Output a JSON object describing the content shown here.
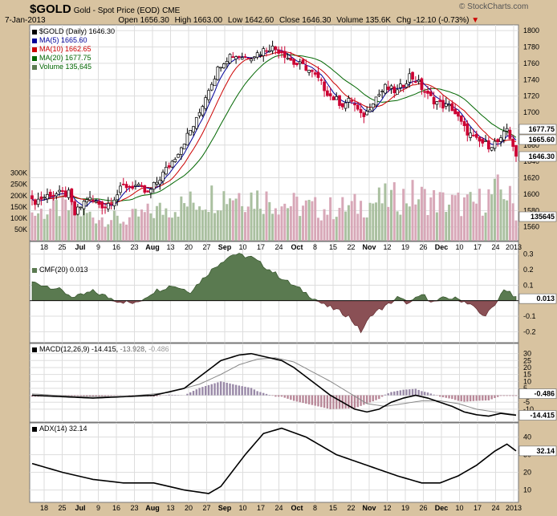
{
  "header": {
    "symbol": "$GOLD",
    "name": "Gold - Spot Price (EOD)",
    "exchange": "CME",
    "date": "7-Jan-2013",
    "open_label": "Open",
    "open": "1656.30",
    "high_label": "High",
    "high": "1663.00",
    "low_label": "Low",
    "low": "1642.60",
    "close_label": "Close",
    "close": "1646.30",
    "volume_label": "Volume",
    "volume": "135.6K",
    "chg_label": "Chg",
    "chg": "-12.10 (-0.73%)",
    "watermark": "© StockCharts.com"
  },
  "colors": {
    "up": "#000000",
    "down": "#cc0033",
    "ma5": "#000099",
    "ma10": "#cc0000",
    "ma20": "#006600",
    "cmf_pos": "#5a7a50",
    "cmf_neg": "#8a5055",
    "vol_up": "#aac0a0",
    "vol_down": "#d8a8b8",
    "grid": "#dddddd"
  },
  "legend": {
    "price": "$GOLD (Daily) 1646.30",
    "ma5": "MA(5) 1665.60",
    "ma10": "MA(10) 1662.65",
    "ma20": "MA(20) 1677.75",
    "volume": "Volume 135,645"
  },
  "panels": {
    "cmf": "CMF(20) 0.013",
    "macd_name": "MACD(12,26,9)",
    "macd_v1": "-14.415,",
    "macd_v2": "-13.928,",
    "macd_v3": "-0.486",
    "adx": "ADX(14) 32.14"
  },
  "chart_data": {
    "type": "candlestick",
    "x_axis": [
      "18",
      "25",
      "Jul",
      "9",
      "16",
      "23",
      "Aug",
      "13",
      "20",
      "27",
      "Sep",
      "10",
      "17",
      "24",
      "Oct",
      "8",
      "15",
      "22",
      "Nov",
      "12",
      "19",
      "26",
      "Dec",
      "10",
      "17",
      "24",
      "2013"
    ],
    "price": {
      "ylim": [
        1545,
        1805
      ],
      "ticks": [
        1560,
        1580,
        1600,
        1620,
        1640,
        1660,
        1680,
        1700,
        1720,
        1740,
        1760,
        1780,
        1800
      ],
      "close_keypoints": [
        [
          0,
          1590
        ],
        [
          6,
          1600
        ],
        [
          12,
          1600
        ],
        [
          14,
          1575
        ],
        [
          18,
          1595
        ],
        [
          24,
          1585
        ],
        [
          28,
          1600
        ],
        [
          30,
          1610
        ],
        [
          34,
          1610
        ],
        [
          38,
          1600
        ],
        [
          42,
          1620
        ],
        [
          46,
          1640
        ],
        [
          50,
          1665
        ],
        [
          54,
          1690
        ],
        [
          58,
          1730
        ],
        [
          62,
          1760
        ],
        [
          65,
          1770
        ],
        [
          70,
          1768
        ],
        [
          74,
          1772
        ],
        [
          78,
          1780
        ],
        [
          82,
          1775
        ],
        [
          86,
          1760
        ],
        [
          90,
          1755
        ],
        [
          94,
          1740
        ],
        [
          98,
          1720
        ],
        [
          102,
          1710
        ],
        [
          105,
          1715
        ],
        [
          108,
          1695
        ],
        [
          110,
          1700
        ],
        [
          112,
          1715
        ],
        [
          116,
          1730
        ],
        [
          120,
          1725
        ],
        [
          124,
          1745
        ],
        [
          126,
          1740
        ],
        [
          130,
          1720
        ],
        [
          134,
          1710
        ],
        [
          138,
          1705
        ],
        [
          142,
          1680
        ],
        [
          146,
          1665
        ],
        [
          150,
          1660
        ],
        [
          154,
          1665
        ],
        [
          156,
          1680
        ],
        [
          158,
          1660
        ],
        [
          159,
          1646
        ]
      ],
      "last_close": 1646.3,
      "ma5_last": 1665.6,
      "ma10_last": 1662.65,
      "ma20_last": 1677.75
    },
    "volume": {
      "ticks": [
        "50K",
        "100K",
        "150K",
        "200K",
        "250K",
        "300K"
      ],
      "last": 135645,
      "keypoints": [
        [
          0,
          120
        ],
        [
          10,
          150
        ],
        [
          20,
          110
        ],
        [
          30,
          90
        ],
        [
          40,
          130
        ],
        [
          50,
          160
        ],
        [
          60,
          200
        ],
        [
          68,
          210
        ],
        [
          75,
          190
        ],
        [
          85,
          160
        ],
        [
          95,
          140
        ],
        [
          105,
          150
        ],
        [
          115,
          180
        ],
        [
          125,
          200
        ],
        [
          135,
          170
        ],
        [
          145,
          160
        ],
        [
          155,
          230
        ],
        [
          159,
          136
        ]
      ]
    },
    "cmf": {
      "ylim": [
        -0.25,
        0.35
      ],
      "ticks": [
        0.3,
        0.2,
        0.1,
        0.0,
        -0.1,
        -0.2
      ],
      "tick_labels": [
        "0.3",
        "0.2",
        "0.1",
        "0.0",
        "-0.1",
        "-0.2"
      ],
      "last": 0.013,
      "keypoints": [
        [
          0,
          0.12
        ],
        [
          8,
          0.08
        ],
        [
          14,
          0.02
        ],
        [
          20,
          0.06
        ],
        [
          28,
          0.0
        ],
        [
          34,
          -0.02
        ],
        [
          40,
          0.06
        ],
        [
          46,
          0.1
        ],
        [
          52,
          0.06
        ],
        [
          58,
          0.18
        ],
        [
          62,
          0.25
        ],
        [
          66,
          0.3
        ],
        [
          72,
          0.28
        ],
        [
          78,
          0.2
        ],
        [
          84,
          0.12
        ],
        [
          90,
          0.05
        ],
        [
          96,
          -0.03
        ],
        [
          100,
          -0.06
        ],
        [
          104,
          -0.1
        ],
        [
          108,
          -0.2
        ],
        [
          112,
          -0.08
        ],
        [
          116,
          -0.04
        ],
        [
          120,
          0.02
        ],
        [
          124,
          -0.02
        ],
        [
          128,
          0.04
        ],
        [
          132,
          -0.01
        ],
        [
          136,
          0.02
        ],
        [
          140,
          0.01
        ],
        [
          144,
          -0.02
        ],
        [
          148,
          -0.1
        ],
        [
          152,
          -0.04
        ],
        [
          155,
          0.08
        ],
        [
          159,
          0.013
        ]
      ]
    },
    "macd": {
      "ylim": [
        -17,
        35
      ],
      "ticks": [
        30,
        25,
        20,
        15,
        10,
        5,
        0,
        -5,
        -10
      ],
      "last_macd": -14.415,
      "last_signal": -13.928,
      "last_hist": -0.486,
      "macd_keypoints": [
        [
          0,
          0
        ],
        [
          10,
          -1
        ],
        [
          20,
          -2
        ],
        [
          30,
          -1
        ],
        [
          40,
          0
        ],
        [
          50,
          5
        ],
        [
          56,
          15
        ],
        [
          62,
          25
        ],
        [
          68,
          29
        ],
        [
          72,
          30
        ],
        [
          76,
          28
        ],
        [
          82,
          25
        ],
        [
          86,
          20
        ],
        [
          92,
          10
        ],
        [
          98,
          0
        ],
        [
          102,
          -5
        ],
        [
          106,
          -10
        ],
        [
          110,
          -12
        ],
        [
          114,
          -10
        ],
        [
          118,
          -5
        ],
        [
          122,
          -2
        ],
        [
          126,
          0
        ],
        [
          130,
          -2
        ],
        [
          134,
          -5
        ],
        [
          138,
          -8
        ],
        [
          142,
          -12
        ],
        [
          146,
          -14
        ],
        [
          150,
          -15
        ],
        [
          154,
          -13
        ],
        [
          159,
          -14.4
        ]
      ],
      "signal_keypoints": [
        [
          0,
          1
        ],
        [
          15,
          -1
        ],
        [
          30,
          -1
        ],
        [
          45,
          2
        ],
        [
          55,
          8
        ],
        [
          62,
          15
        ],
        [
          68,
          22
        ],
        [
          74,
          26
        ],
        [
          80,
          27
        ],
        [
          86,
          24
        ],
        [
          92,
          17
        ],
        [
          98,
          10
        ],
        [
          104,
          2
        ],
        [
          110,
          -6
        ],
        [
          116,
          -8
        ],
        [
          122,
          -6
        ],
        [
          128,
          -4
        ],
        [
          134,
          -4
        ],
        [
          140,
          -6
        ],
        [
          146,
          -10
        ],
        [
          152,
          -12
        ],
        [
          159,
          -13.9
        ]
      ]
    },
    "adx": {
      "ylim": [
        3,
        48
      ],
      "ticks": [
        10,
        20,
        30,
        40
      ],
      "last": 32.14,
      "keypoints": [
        [
          0,
          25
        ],
        [
          10,
          20
        ],
        [
          20,
          16
        ],
        [
          30,
          14
        ],
        [
          40,
          14
        ],
        [
          50,
          10
        ],
        [
          58,
          8
        ],
        [
          62,
          12
        ],
        [
          70,
          30
        ],
        [
          76,
          42
        ],
        [
          82,
          45
        ],
        [
          90,
          40
        ],
        [
          100,
          30
        ],
        [
          110,
          24
        ],
        [
          120,
          18
        ],
        [
          128,
          14
        ],
        [
          134,
          14
        ],
        [
          140,
          18
        ],
        [
          146,
          24
        ],
        [
          152,
          32
        ],
        [
          156,
          36
        ],
        [
          159,
          32.14
        ]
      ]
    }
  }
}
